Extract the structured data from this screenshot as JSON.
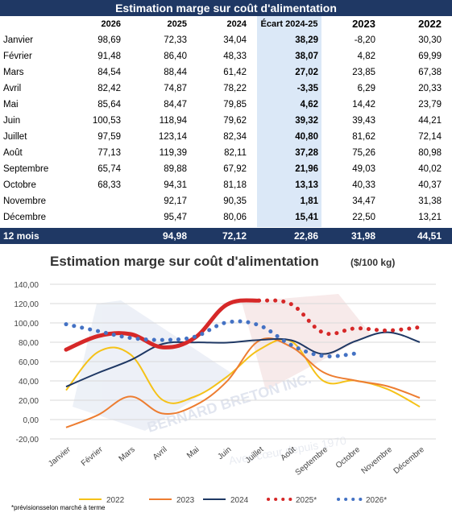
{
  "table": {
    "title": "Estimation marge sur coût d'alimentation",
    "headers": [
      "",
      "2026",
      "2025",
      "2024",
      "Écart 2024-25",
      "2023",
      "2022"
    ],
    "rows": [
      [
        "Janvier",
        "98,69",
        "72,33",
        "34,04",
        "38,29",
        "-8,20",
        "30,30"
      ],
      [
        "Février",
        "91,48",
        "86,40",
        "48,33",
        "38,07",
        "4,82",
        "69,99"
      ],
      [
        "Mars",
        "84,54",
        "88,44",
        "61,42",
        "27,02",
        "23,85",
        "67,38"
      ],
      [
        "Avril",
        "82,42",
        "74,87",
        "78,22",
        "-3,35",
        "6,29",
        "20,33"
      ],
      [
        "Mai",
        "85,64",
        "84,47",
        "79,85",
        "4,62",
        "14,42",
        "23,79"
      ],
      [
        "Juin",
        "100,53",
        "118,94",
        "79,62",
        "39,32",
        "39,43",
        "44,21"
      ],
      [
        "Juillet",
        "97,59",
        "123,14",
        "82,34",
        "40,80",
        "81,62",
        "72,14"
      ],
      [
        "Août",
        "77,13",
        "119,39",
        "82,11",
        "37,28",
        "75,26",
        "80,98"
      ],
      [
        "Septembre",
        "65,74",
        "89,88",
        "67,92",
        "21,96",
        "49,03",
        "40,02"
      ],
      [
        "Octobre",
        "68,33",
        "94,31",
        "81,18",
        "13,13",
        "40,33",
        "40,37"
      ],
      [
        "Novembre",
        "",
        "92,17",
        "90,35",
        "1,81",
        "34,47",
        "31,38"
      ],
      [
        "Décembre",
        "",
        "95,47",
        "80,06",
        "15,41",
        "22,50",
        "13,21"
      ]
    ],
    "total": [
      "12 mois",
      "",
      "94,98",
      "72,12",
      "22,86",
      "31,98",
      "44,51"
    ]
  },
  "chart_data": {
    "type": "line",
    "title": "Estimation  marge sur coût d'alimentation",
    "unit": "($/100 kg)",
    "categories": [
      "Janvier",
      "Février",
      "Mars",
      "Avril",
      "Mai",
      "Juin",
      "Juillet",
      "Août",
      "Septembre",
      "Octobre",
      "Novembre",
      "Décembre"
    ],
    "ylim": [
      -20,
      140
    ],
    "yticks": [
      "-20,00",
      "0,00",
      "20,00",
      "40,00",
      "60,00",
      "80,00",
      "100,00",
      "120,00",
      "140,00"
    ],
    "grid": true,
    "legend_position": "bottom",
    "series": [
      {
        "name": "2022",
        "color": "#f5c218",
        "style": "solid",
        "values": [
          30.3,
          69.99,
          67.38,
          20.33,
          23.79,
          44.21,
          72.14,
          80.98,
          40.02,
          40.37,
          31.38,
          13.21
        ]
      },
      {
        "name": "2023",
        "color": "#ed7d31",
        "style": "solid",
        "values": [
          -8.2,
          4.82,
          23.85,
          6.29,
          14.42,
          39.43,
          81.62,
          75.26,
          49.03,
          40.33,
          34.47,
          22.5
        ]
      },
      {
        "name": "2024",
        "color": "#1f3864",
        "style": "solid",
        "values": [
          34.04,
          48.33,
          61.42,
          78.22,
          79.85,
          79.62,
          82.34,
          82.11,
          67.92,
          81.18,
          90.35,
          80.06
        ]
      },
      {
        "name": "2025*",
        "color": "#d62828",
        "style": "dotted-solid",
        "solid_until": 6,
        "values": [
          72.33,
          86.4,
          88.44,
          74.87,
          84.47,
          118.94,
          123.14,
          119.39,
          89.88,
          94.31,
          92.17,
          95.47
        ]
      },
      {
        "name": "2026*",
        "color": "#4472c4",
        "style": "dotted",
        "values": [
          98.69,
          91.48,
          84.54,
          82.42,
          85.64,
          100.53,
          97.59,
          77.13,
          65.74,
          68.33,
          null,
          null
        ]
      }
    ],
    "watermark": "BERNARD BRETON INC.",
    "watermark_tagline": "Avec cœur depuis 1970"
  },
  "footnote": "*prévisionsselon marché à terme"
}
